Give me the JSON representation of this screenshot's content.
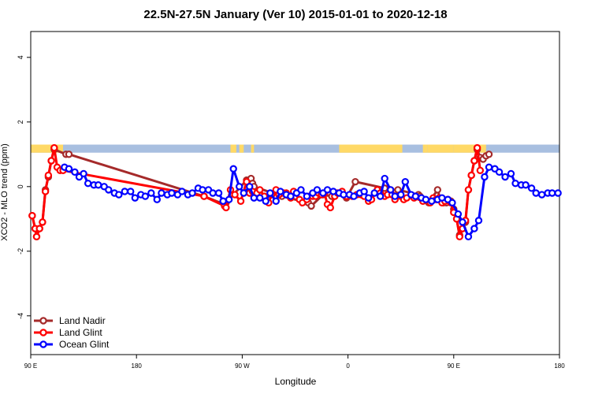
{
  "chart_data": {
    "type": "line",
    "title": "22.5N-27.5N January (Ver 10)   2015-01-01 to 2020-12-18",
    "xlabel": "Longitude",
    "ylabel": "XCO2 - MLO trend (ppm)",
    "xlim": [
      90,
      450
    ],
    "ylim": [
      -5.2,
      4.8
    ],
    "x_ticks": [
      {
        "value": 90,
        "label": "90 E"
      },
      {
        "value": 162,
        "label": "180"
      },
      {
        "value": 234,
        "label": "90 W"
      },
      {
        "value": 306,
        "label": "0"
      },
      {
        "value": 378,
        "label": "90 E"
      },
      {
        "value": 450,
        "label": "180"
      }
    ],
    "y_ticks": [
      {
        "value": -4,
        "label": "-4"
      },
      {
        "value": -2,
        "label": "-2"
      },
      {
        "value": 0,
        "label": "0"
      },
      {
        "value": 2,
        "label": "2"
      },
      {
        "value": 4,
        "label": "4"
      }
    ],
    "land_ocean_band": {
      "y_range": [
        1.05,
        1.3
      ],
      "ocean_color": "#A8BFE0",
      "land_color": "#FFD966",
      "land_intervals": [
        [
          90,
          112
        ],
        [
          226,
          230
        ],
        [
          232,
          235
        ],
        [
          240,
          242
        ],
        [
          300,
          343
        ],
        [
          357,
          360
        ],
        [
          360,
          378
        ],
        [
          378,
          400
        ]
      ]
    },
    "legend_position": "bottom-left",
    "series": [
      {
        "name": "Land Nadir",
        "color": "#A52A2A",
        "x": [
          91,
          93,
          94,
          96,
          98,
          100,
          102,
          104,
          106,
          114,
          116,
          208,
          222,
          223,
          237,
          240,
          241,
          242,
          261,
          279,
          281,
          289,
          295,
          301,
          305,
          311,
          331,
          335,
          340,
          354,
          355,
          361,
          367,
          369,
          371,
          373,
          374,
          376,
          378,
          380,
          382,
          384,
          386,
          388,
          390,
          392,
          394,
          396,
          398,
          400,
          402
        ],
        "y": [
          -0.9,
          -1.3,
          -1.55,
          -1.3,
          -1.1,
          -0.1,
          0.3,
          0.8,
          1.15,
          1.0,
          1.0,
          -0.3,
          -0.55,
          -0.5,
          0.2,
          0.25,
          0.1,
          0.0,
          -0.3,
          -0.5,
          -0.6,
          -0.25,
          -0.3,
          -0.2,
          -0.35,
          0.15,
          -0.05,
          -0.1,
          -0.1,
          -0.25,
          -0.3,
          -0.5,
          -0.1,
          -0.4,
          -0.5,
          -0.5,
          -0.4,
          -0.45,
          -0.7,
          -1.0,
          -1.5,
          -1.3,
          -1.1,
          -0.1,
          0.35,
          0.8,
          1.15,
          0.9,
          0.85,
          0.95,
          1.0
        ]
      },
      {
        "name": "Land Glint",
        "color": "#FF0000",
        "x": [
          91,
          93,
          94,
          96,
          98,
          100,
          102,
          104,
          106,
          108,
          110,
          112,
          208,
          222,
          223,
          226,
          229,
          233,
          237,
          239,
          241,
          244,
          246,
          249,
          252,
          254,
          257,
          259,
          262,
          264,
          267,
          269,
          273,
          275,
          278,
          280,
          282,
          284,
          286,
          288,
          290,
          292,
          294,
          297,
          299,
          302,
          305,
          309,
          312,
          315,
          317,
          320,
          322,
          326,
          328,
          331,
          333,
          336,
          338,
          342,
          344,
          346,
          351,
          357,
          362,
          364,
          366,
          368,
          370,
          372,
          374,
          376,
          378,
          380,
          382,
          384,
          386,
          388,
          390,
          392,
          394,
          396
        ],
        "y": [
          -0.9,
          -1.3,
          -1.55,
          -1.3,
          -1.1,
          -0.15,
          0.35,
          0.8,
          1.2,
          0.6,
          0.5,
          0.5,
          -0.3,
          -0.6,
          -0.65,
          -0.1,
          -0.25,
          -0.45,
          0.15,
          -0.2,
          -0.15,
          -0.2,
          -0.1,
          -0.3,
          -0.5,
          -0.25,
          -0.1,
          -0.25,
          -0.2,
          -0.2,
          -0.35,
          -0.15,
          -0.4,
          -0.5,
          -0.4,
          -0.3,
          -0.3,
          -0.3,
          -0.2,
          -0.25,
          -0.2,
          -0.55,
          -0.65,
          -0.3,
          -0.2,
          -0.15,
          -0.3,
          -0.3,
          -0.25,
          -0.25,
          -0.3,
          -0.45,
          -0.4,
          -0.1,
          -0.2,
          -0.3,
          -0.25,
          -0.25,
          -0.4,
          -0.3,
          -0.4,
          -0.35,
          -0.35,
          -0.45,
          -0.5,
          -0.35,
          -0.4,
          -0.35,
          -0.5,
          -0.45,
          -0.4,
          -0.5,
          -0.8,
          -1.0,
          -1.55,
          -1.3,
          -1.05,
          -0.1,
          0.35,
          0.8,
          1.2,
          0.5
        ]
      },
      {
        "name": "Ocean Glint",
        "color": "#0000FF",
        "x": [
          113,
          116,
          120,
          123,
          126,
          129,
          133,
          136,
          140,
          143,
          147,
          150,
          154,
          158,
          161,
          165,
          168,
          172,
          176,
          179,
          183,
          186,
          190,
          193,
          197,
          200,
          204,
          207,
          211,
          214,
          218,
          221,
          225,
          228,
          232,
          235,
          239,
          242,
          246,
          250,
          253,
          257,
          260,
          264,
          267,
          271,
          274,
          278,
          282,
          285,
          289,
          292,
          296,
          300,
          303,
          307,
          310,
          314,
          317,
          320,
          324,
          328,
          331,
          335,
          338,
          342,
          345,
          349,
          352,
          356,
          359,
          363,
          367,
          370,
          374,
          377,
          381,
          384,
          388,
          392,
          395,
          399,
          402,
          406,
          409,
          413,
          417,
          420,
          424,
          427,
          431,
          434,
          438,
          442,
          445,
          449
        ],
        "y": [
          0.6,
          0.55,
          0.45,
          0.3,
          0.4,
          0.1,
          0.05,
          0.05,
          0.0,
          -0.1,
          -0.2,
          -0.25,
          -0.15,
          -0.15,
          -0.35,
          -0.25,
          -0.3,
          -0.2,
          -0.4,
          -0.2,
          -0.25,
          -0.2,
          -0.25,
          -0.15,
          -0.25,
          -0.2,
          -0.05,
          -0.1,
          -0.1,
          -0.2,
          -0.2,
          -0.45,
          -0.4,
          0.55,
          0.0,
          -0.2,
          0.0,
          -0.35,
          -0.35,
          -0.45,
          -0.2,
          -0.45,
          -0.15,
          -0.25,
          -0.3,
          -0.2,
          -0.1,
          -0.3,
          -0.2,
          -0.1,
          -0.2,
          -0.1,
          -0.15,
          -0.2,
          -0.25,
          -0.25,
          -0.3,
          -0.2,
          -0.15,
          -0.35,
          -0.2,
          -0.3,
          0.25,
          -0.1,
          -0.3,
          -0.25,
          0.15,
          -0.25,
          -0.3,
          -0.35,
          -0.4,
          -0.45,
          -0.4,
          -0.35,
          -0.4,
          -0.5,
          -0.85,
          -1.1,
          -1.55,
          -1.3,
          -1.05,
          0.3,
          0.6,
          0.55,
          0.45,
          0.3,
          0.4,
          0.1,
          0.05,
          0.05,
          -0.05,
          -0.2,
          -0.25,
          -0.2,
          -0.2,
          -0.2
        ]
      }
    ]
  }
}
